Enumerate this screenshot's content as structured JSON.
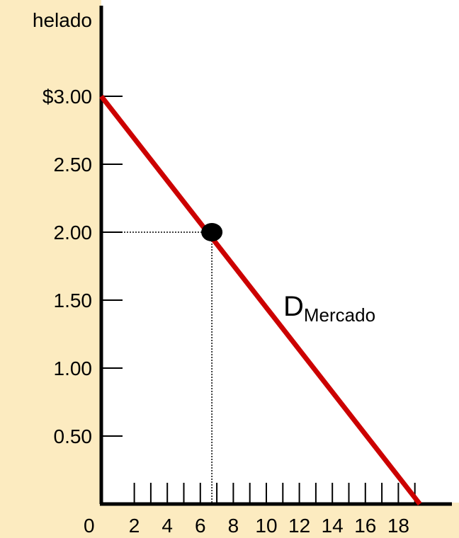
{
  "colors": {
    "page_background": "#fcebc0",
    "plot_background": "#ffffff",
    "axis": "#000000",
    "demand_line": "#cc0000",
    "marker": "#000000"
  },
  "chart_data": {
    "type": "line",
    "ylabel": "helado",
    "xlim": [
      0,
      20
    ],
    "ylim": [
      0,
      3.3
    ],
    "x_ticks": [
      2,
      3,
      4,
      5,
      6,
      7,
      8,
      9,
      10,
      11,
      12,
      13,
      14,
      15,
      16,
      17,
      18,
      19
    ],
    "x_tick_labels": [
      {
        "x": 0,
        "label": "0"
      },
      {
        "x": 2,
        "label": "2"
      },
      {
        "x": 4,
        "label": "4"
      },
      {
        "x": 6,
        "label": "6"
      },
      {
        "x": 8,
        "label": "8"
      },
      {
        "x": 10,
        "label": "10"
      },
      {
        "x": 12,
        "label": "12"
      },
      {
        "x": 14,
        "label": "14"
      },
      {
        "x": 16,
        "label": "16"
      },
      {
        "x": 18,
        "label": "18"
      }
    ],
    "y_ticks": [
      {
        "y": 3.0,
        "label": "$3.00"
      },
      {
        "y": 2.5,
        "label": "2.50"
      },
      {
        "y": 2.0,
        "label": "2.00"
      },
      {
        "y": 1.5,
        "label": "1.50"
      },
      {
        "y": 1.0,
        "label": "1.00"
      },
      {
        "y": 0.5,
        "label": "0.50"
      }
    ],
    "series": [
      {
        "name_main": "D",
        "name_sub": "Mercado",
        "points": [
          {
            "x": 0,
            "y": 3.0
          },
          {
            "x": 19.3,
            "y": 0
          }
        ]
      }
    ],
    "highlight_point": {
      "x": 6.7,
      "y": 2.0
    },
    "guides": "dotted lines from highlight point to both axes",
    "grid": false
  }
}
